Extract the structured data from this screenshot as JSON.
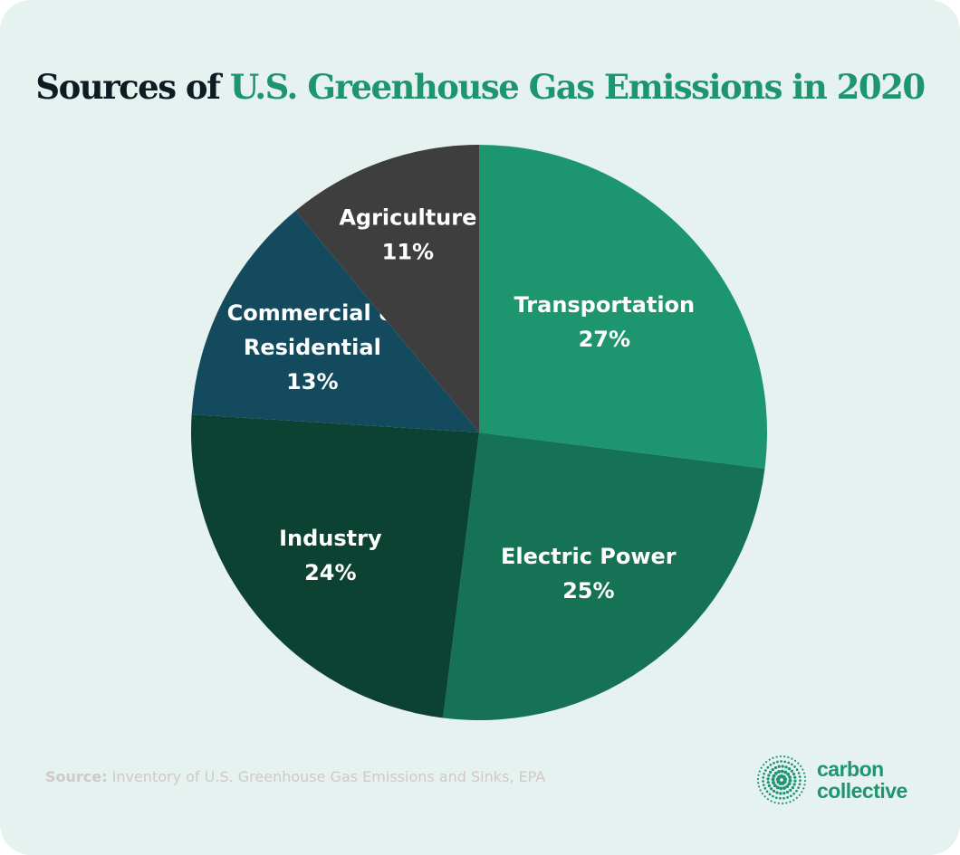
{
  "title": {
    "prefix": "Sources of",
    "highlight": "U.S. Greenhouse Gas Emissions in 2020"
  },
  "chart_data": {
    "type": "pie",
    "title": "Sources of U.S. Greenhouse Gas Emissions in 2020",
    "start": "top",
    "direction": "clockwise",
    "slices": [
      {
        "label": "Transportation",
        "value": 27,
        "value_label": "27%",
        "color": "#1d9670"
      },
      {
        "label": "Electric Power",
        "value": 25,
        "value_label": "25%",
        "color": "#157255"
      },
      {
        "label": "Industry",
        "value": 24,
        "value_label": "24%",
        "color": "#0b4232"
      },
      {
        "label": "Commercial & Residential",
        "value": 13,
        "value_label": "13%",
        "color": "#144a5e"
      },
      {
        "label": "Agriculture",
        "value": 11,
        "value_label": "11%",
        "color": "#3f3e3e"
      }
    ]
  },
  "source": {
    "label": "Source:",
    "text": "Inventory of U.S. Greenhouse Gas Emissions and Sinks, EPA"
  },
  "logo": {
    "line1": "carbon",
    "line2": "collective",
    "color": "#1d9670"
  }
}
